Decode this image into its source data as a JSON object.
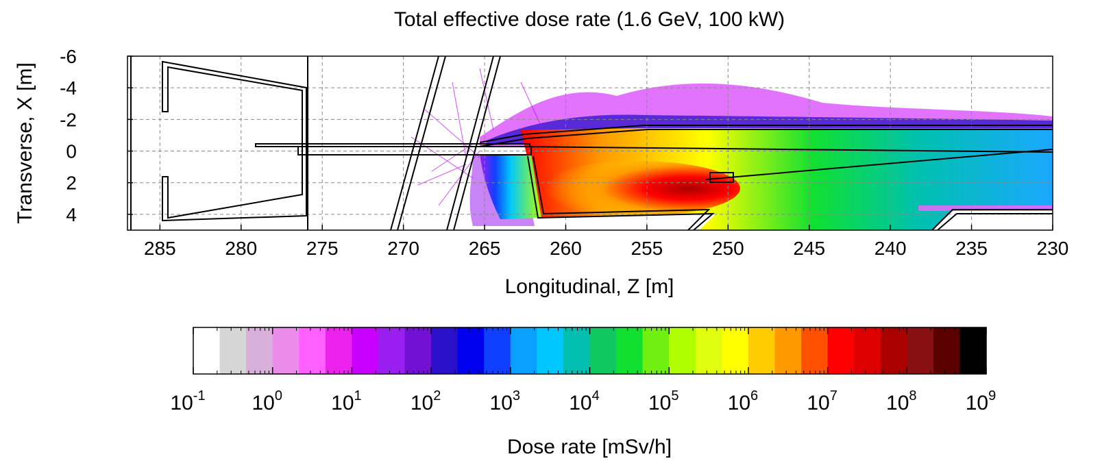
{
  "chart_data": {
    "type": "heatmap",
    "title": "Total effective dose rate (1.6 GeV, 100 kW)",
    "xlabel": "Longitudinal, Z [m]",
    "ylabel": "Transverse, X [m]",
    "xlim": [
      287,
      230
    ],
    "ylim": [
      -6,
      5
    ],
    "x_ticks": [
      285,
      280,
      275,
      270,
      265,
      260,
      255,
      250,
      245,
      240,
      235,
      230
    ],
    "y_ticks": [
      -6,
      -4,
      -2,
      0,
      2,
      4
    ],
    "grid": true,
    "colorbar": {
      "label": "Dose rate [mSv/h]",
      "scale": "log",
      "range": [
        -1,
        9
      ],
      "tick_base": "10",
      "tick_exponents": [
        "-1",
        "0",
        "1",
        "2",
        "3",
        "4",
        "5",
        "6",
        "7",
        "8",
        "9"
      ],
      "colors": [
        "#ffffff",
        "#d6d6d6",
        "#d9b0da",
        "#eb8ceb",
        "#ff60ff",
        "#ee22ee",
        "#c800ff",
        "#9a1ef0",
        "#7210d4",
        "#2a10c8",
        "#0000ee",
        "#1040ff",
        "#0aa0ff",
        "#00c8ff",
        "#00beb0",
        "#10c860",
        "#10e030",
        "#70f010",
        "#b0ff00",
        "#e0ff10",
        "#ffff00",
        "#ffcc00",
        "#ff9900",
        "#ff5000",
        "#ff0000",
        "#dd0000",
        "#aa0000",
        "#881010",
        "#5a0000",
        "#000000"
      ]
    }
  }
}
